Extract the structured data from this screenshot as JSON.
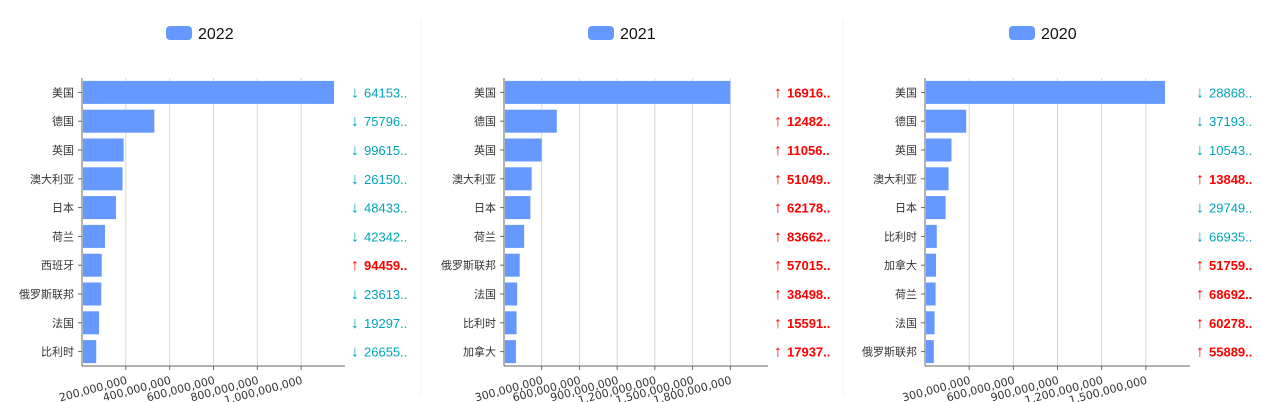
{
  "colors": {
    "bar": "#6699ff",
    "down": "#00a4b8",
    "up": "#ff0000",
    "grid": "#d8d8d8",
    "axis": "#666666"
  },
  "chart_data": [
    {
      "type": "bar",
      "orientation": "horizontal",
      "legend": "2022",
      "legend_position": "top",
      "grid": true,
      "xlim": [
        0,
        1200000000
      ],
      "x_ticks": [
        "200,000,000",
        "400,000,000",
        "600,000,000",
        "800,000,000",
        "1,000,000,000"
      ],
      "x_tick_values": [
        200000000,
        400000000,
        600000000,
        800000000,
        1000000000
      ],
      "categories": [
        "美国",
        "德国",
        "英国",
        "澳大利亚",
        "日本",
        "荷兰",
        "西班牙",
        "俄罗斯联邦",
        "法国",
        "比利时"
      ],
      "values": [
        1150000000,
        330000000,
        190000000,
        185000000,
        155000000,
        105000000,
        90000000,
        88000000,
        78000000,
        65000000
      ],
      "changes": [
        {
          "dir": "down",
          "arrow": "↓",
          "text": "64153.."
        },
        {
          "dir": "down",
          "arrow": "↓",
          "text": "75796.."
        },
        {
          "dir": "down",
          "arrow": "↓",
          "text": "99615.."
        },
        {
          "dir": "down",
          "arrow": "↓",
          "text": "26150.."
        },
        {
          "dir": "down",
          "arrow": "↓",
          "text": "48433.."
        },
        {
          "dir": "down",
          "arrow": "↓",
          "text": "42342.."
        },
        {
          "dir": "up",
          "arrow": "↑",
          "text": "94459.."
        },
        {
          "dir": "down",
          "arrow": "↓",
          "text": "23613.."
        },
        {
          "dir": "down",
          "arrow": "↓",
          "text": "19297.."
        },
        {
          "dir": "down",
          "arrow": "↓",
          "text": "26655.."
        }
      ]
    },
    {
      "type": "bar",
      "orientation": "horizontal",
      "legend": "2021",
      "legend_position": "top",
      "grid": true,
      "xlim": [
        0,
        2100000000
      ],
      "x_ticks": [
        "300,000,000",
        "600,000,000",
        "900,000,000",
        "1,200,000,000",
        "1,500,000,000",
        "1,800,000,000"
      ],
      "x_tick_values": [
        300000000,
        600000000,
        900000000,
        1200000000,
        1500000000,
        1800000000
      ],
      "categories": [
        "美国",
        "德国",
        "英国",
        "澳大利亚",
        "日本",
        "荷兰",
        "俄罗斯联邦",
        "法国",
        "比利时",
        "加拿大"
      ],
      "values": [
        1800000000,
        420000000,
        300000000,
        220000000,
        210000000,
        160000000,
        125000000,
        105000000,
        100000000,
        95000000
      ],
      "changes": [
        {
          "dir": "up",
          "arrow": "↑",
          "text": "16916.."
        },
        {
          "dir": "up",
          "arrow": "↑",
          "text": "12482.."
        },
        {
          "dir": "up",
          "arrow": "↑",
          "text": "11056.."
        },
        {
          "dir": "up",
          "arrow": "↑",
          "text": "51049.."
        },
        {
          "dir": "up",
          "arrow": "↑",
          "text": "62178.."
        },
        {
          "dir": "up",
          "arrow": "↑",
          "text": "83662.."
        },
        {
          "dir": "up",
          "arrow": "↑",
          "text": "57015.."
        },
        {
          "dir": "up",
          "arrow": "↑",
          "text": "38498.."
        },
        {
          "dir": "up",
          "arrow": "↑",
          "text": "15591.."
        },
        {
          "dir": "up",
          "arrow": "↑",
          "text": "17937.."
        }
      ]
    },
    {
      "type": "bar",
      "orientation": "horizontal",
      "legend": "2020",
      "legend_position": "top",
      "grid": true,
      "xlim": [
        0,
        1800000000
      ],
      "x_ticks": [
        "300,000,000",
        "600,000,000",
        "900,000,000",
        "1,200,000,000",
        "1,500,000,000"
      ],
      "x_tick_values": [
        300000000,
        600000000,
        900000000,
        1200000000,
        1500000000
      ],
      "categories": [
        "美国",
        "德国",
        "英国",
        "澳大利亚",
        "日本",
        "比利时",
        "加拿大",
        "荷兰",
        "法国",
        "俄罗斯联邦"
      ],
      "values": [
        1630000000,
        280000000,
        180000000,
        160000000,
        140000000,
        80000000,
        75000000,
        72000000,
        65000000,
        60000000
      ],
      "changes": [
        {
          "dir": "down",
          "arrow": "↓",
          "text": "28868.."
        },
        {
          "dir": "down",
          "arrow": "↓",
          "text": "37193.."
        },
        {
          "dir": "down",
          "arrow": "↓",
          "text": "10543.."
        },
        {
          "dir": "up",
          "arrow": "↑",
          "text": "13848.."
        },
        {
          "dir": "down",
          "arrow": "↓",
          "text": "29749.."
        },
        {
          "dir": "down",
          "arrow": "↓",
          "text": "66935.."
        },
        {
          "dir": "up",
          "arrow": "↑",
          "text": "51759.."
        },
        {
          "dir": "up",
          "arrow": "↑",
          "text": "68692.."
        },
        {
          "dir": "up",
          "arrow": "↑",
          "text": "60278.."
        },
        {
          "dir": "up",
          "arrow": "↑",
          "text": "55889.."
        }
      ]
    }
  ]
}
